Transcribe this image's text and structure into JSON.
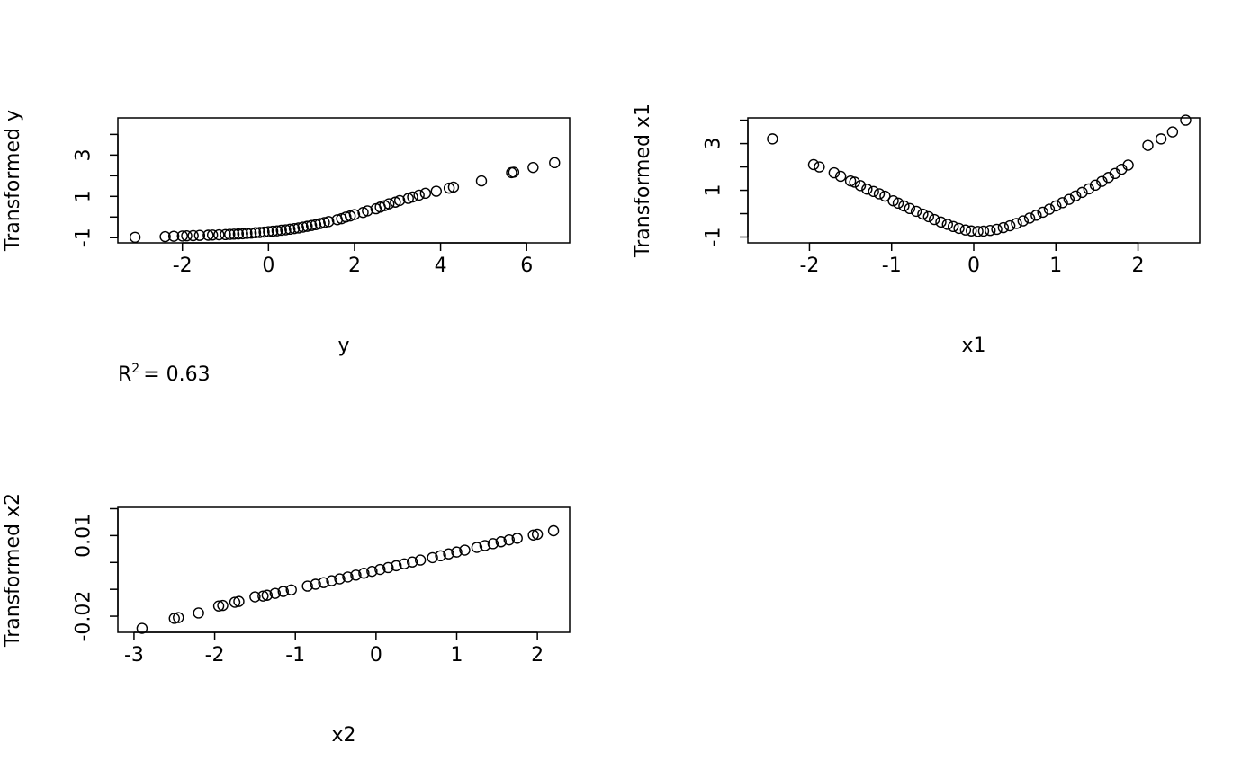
{
  "annotation": {
    "r2_prefix": "R",
    "r2_superscript": "2",
    "r2_value": "= 0.63"
  },
  "chart_data": [
    {
      "type": "scatter",
      "xlabel": "y",
      "ylabel": "Transformed y",
      "xlim": [
        -3.5,
        7.0
      ],
      "ylim": [
        -1.25,
        4.8
      ],
      "xticks": [
        -2,
        0,
        2,
        4,
        6
      ],
      "yticks": [
        -1,
        0,
        1,
        2,
        3,
        4
      ],
      "ytick_labels": [
        "-1",
        "",
        "1",
        "",
        "3",
        ""
      ],
      "points": [
        {
          "x": -3.1,
          "y": -0.98
        },
        {
          "x": -2.4,
          "y": -0.95
        },
        {
          "x": -2.2,
          "y": -0.93
        },
        {
          "x": -2.0,
          "y": -0.92
        },
        {
          "x": -1.9,
          "y": -0.91
        },
        {
          "x": -1.75,
          "y": -0.9
        },
        {
          "x": -1.6,
          "y": -0.89
        },
        {
          "x": -1.4,
          "y": -0.88
        },
        {
          "x": -1.3,
          "y": -0.87
        },
        {
          "x": -1.15,
          "y": -0.86
        },
        {
          "x": -1.0,
          "y": -0.85
        },
        {
          "x": -0.9,
          "y": -0.84
        },
        {
          "x": -0.8,
          "y": -0.83
        },
        {
          "x": -0.7,
          "y": -0.82
        },
        {
          "x": -0.6,
          "y": -0.81
        },
        {
          "x": -0.5,
          "y": -0.79
        },
        {
          "x": -0.4,
          "y": -0.78
        },
        {
          "x": -0.3,
          "y": -0.76
        },
        {
          "x": -0.2,
          "y": -0.75
        },
        {
          "x": -0.1,
          "y": -0.73
        },
        {
          "x": 0.0,
          "y": -0.71
        },
        {
          "x": 0.1,
          "y": -0.69
        },
        {
          "x": 0.2,
          "y": -0.67
        },
        {
          "x": 0.3,
          "y": -0.64
        },
        {
          "x": 0.4,
          "y": -0.62
        },
        {
          "x": 0.5,
          "y": -0.59
        },
        {
          "x": 0.6,
          "y": -0.56
        },
        {
          "x": 0.7,
          "y": -0.53
        },
        {
          "x": 0.8,
          "y": -0.49
        },
        {
          "x": 0.9,
          "y": -0.45
        },
        {
          "x": 1.0,
          "y": -0.41
        },
        {
          "x": 1.1,
          "y": -0.37
        },
        {
          "x": 1.2,
          "y": -0.32
        },
        {
          "x": 1.3,
          "y": -0.27
        },
        {
          "x": 1.4,
          "y": -0.22
        },
        {
          "x": 1.6,
          "y": -0.13
        },
        {
          "x": 1.7,
          "y": -0.08
        },
        {
          "x": 1.8,
          "y": 0.0
        },
        {
          "x": 1.9,
          "y": 0.05
        },
        {
          "x": 2.0,
          "y": 0.12
        },
        {
          "x": 2.2,
          "y": 0.22
        },
        {
          "x": 2.3,
          "y": 0.3
        },
        {
          "x": 2.5,
          "y": 0.4
        },
        {
          "x": 2.6,
          "y": 0.48
        },
        {
          "x": 2.7,
          "y": 0.55
        },
        {
          "x": 2.8,
          "y": 0.64
        },
        {
          "x": 2.95,
          "y": 0.72
        },
        {
          "x": 3.05,
          "y": 0.8
        },
        {
          "x": 3.25,
          "y": 0.9
        },
        {
          "x": 3.35,
          "y": 0.97
        },
        {
          "x": 3.5,
          "y": 1.06
        },
        {
          "x": 3.65,
          "y": 1.15
        },
        {
          "x": 3.9,
          "y": 1.25
        },
        {
          "x": 4.2,
          "y": 1.4
        },
        {
          "x": 4.3,
          "y": 1.45
        },
        {
          "x": 4.95,
          "y": 1.75
        },
        {
          "x": 5.65,
          "y": 2.15
        },
        {
          "x": 5.7,
          "y": 2.17
        },
        {
          "x": 6.15,
          "y": 2.4
        },
        {
          "x": 6.65,
          "y": 2.63
        }
      ]
    },
    {
      "type": "scatter",
      "xlabel": "x1",
      "ylabel": "Transformed x1",
      "xlim": [
        -2.75,
        2.75
      ],
      "ylim": [
        -1.25,
        4.1
      ],
      "xticks": [
        -2,
        -1,
        0,
        1,
        2
      ],
      "yticks": [
        -1,
        0,
        1,
        2,
        3,
        4
      ],
      "ytick_labels": [
        "-1",
        "",
        "1",
        "",
        "3",
        ""
      ],
      "points": [
        {
          "x": -2.45,
          "y": 3.2
        },
        {
          "x": -1.95,
          "y": 2.1
        },
        {
          "x": -1.88,
          "y": 2.0
        },
        {
          "x": -1.7,
          "y": 1.75
        },
        {
          "x": -1.62,
          "y": 1.6
        },
        {
          "x": -1.5,
          "y": 1.4
        },
        {
          "x": -1.45,
          "y": 1.35
        },
        {
          "x": -1.38,
          "y": 1.2
        },
        {
          "x": -1.3,
          "y": 1.05
        },
        {
          "x": -1.22,
          "y": 0.95
        },
        {
          "x": -1.15,
          "y": 0.85
        },
        {
          "x": -1.08,
          "y": 0.75
        },
        {
          "x": -0.98,
          "y": 0.55
        },
        {
          "x": -0.92,
          "y": 0.45
        },
        {
          "x": -0.85,
          "y": 0.33
        },
        {
          "x": -0.78,
          "y": 0.22
        },
        {
          "x": -0.7,
          "y": 0.1
        },
        {
          "x": -0.62,
          "y": -0.02
        },
        {
          "x": -0.55,
          "y": -0.13
        },
        {
          "x": -0.48,
          "y": -0.25
        },
        {
          "x": -0.4,
          "y": -0.36
        },
        {
          "x": -0.32,
          "y": -0.46
        },
        {
          "x": -0.25,
          "y": -0.55
        },
        {
          "x": -0.18,
          "y": -0.63
        },
        {
          "x": -0.1,
          "y": -0.7
        },
        {
          "x": -0.03,
          "y": -0.74
        },
        {
          "x": 0.05,
          "y": -0.76
        },
        {
          "x": 0.12,
          "y": -0.75
        },
        {
          "x": 0.2,
          "y": -0.72
        },
        {
          "x": 0.28,
          "y": -0.67
        },
        {
          "x": 0.36,
          "y": -0.6
        },
        {
          "x": 0.44,
          "y": -0.52
        },
        {
          "x": 0.52,
          "y": -0.42
        },
        {
          "x": 0.6,
          "y": -0.31
        },
        {
          "x": 0.68,
          "y": -0.19
        },
        {
          "x": 0.76,
          "y": -0.07
        },
        {
          "x": 0.84,
          "y": 0.06
        },
        {
          "x": 0.92,
          "y": 0.19
        },
        {
          "x": 1.0,
          "y": 0.33
        },
        {
          "x": 1.08,
          "y": 0.47
        },
        {
          "x": 1.16,
          "y": 0.61
        },
        {
          "x": 1.24,
          "y": 0.76
        },
        {
          "x": 1.32,
          "y": 0.91
        },
        {
          "x": 1.4,
          "y": 1.06
        },
        {
          "x": 1.48,
          "y": 1.22
        },
        {
          "x": 1.56,
          "y": 1.38
        },
        {
          "x": 1.64,
          "y": 1.55
        },
        {
          "x": 1.72,
          "y": 1.72
        },
        {
          "x": 1.8,
          "y": 1.9
        },
        {
          "x": 1.88,
          "y": 2.08
        },
        {
          "x": 2.12,
          "y": 2.92
        },
        {
          "x": 2.28,
          "y": 3.2
        },
        {
          "x": 2.42,
          "y": 3.5
        },
        {
          "x": 2.58,
          "y": 4.0
        }
      ]
    },
    {
      "type": "scatter",
      "xlabel": "x2",
      "ylabel": "Transformed x2",
      "xlim": [
        -3.2,
        2.4
      ],
      "ylim": [
        -0.026,
        0.0205
      ],
      "xticks": [
        -3,
        -2,
        -1,
        0,
        1,
        2
      ],
      "yticks": [
        -0.02,
        -0.01,
        0.0,
        0.01,
        0.02
      ],
      "ytick_labels": [
        "-0.02",
        "",
        "",
        "0.01",
        ""
      ],
      "points": [
        {
          "x": -2.9,
          "y": -0.0245
        },
        {
          "x": -2.5,
          "y": -0.0208
        },
        {
          "x": -2.45,
          "y": -0.0205
        },
        {
          "x": -2.2,
          "y": -0.0188
        },
        {
          "x": -1.95,
          "y": -0.0162
        },
        {
          "x": -1.9,
          "y": -0.016
        },
        {
          "x": -1.75,
          "y": -0.0148
        },
        {
          "x": -1.7,
          "y": -0.0145
        },
        {
          "x": -1.5,
          "y": -0.0128
        },
        {
          "x": -1.4,
          "y": -0.0125
        },
        {
          "x": -1.35,
          "y": -0.0122
        },
        {
          "x": -1.25,
          "y": -0.0115
        },
        {
          "x": -1.15,
          "y": -0.0108
        },
        {
          "x": -1.05,
          "y": -0.0102
        },
        {
          "x": -0.85,
          "y": -0.0088
        },
        {
          "x": -0.75,
          "y": -0.0081
        },
        {
          "x": -0.65,
          "y": -0.0075
        },
        {
          "x": -0.55,
          "y": -0.0068
        },
        {
          "x": -0.45,
          "y": -0.0061
        },
        {
          "x": -0.35,
          "y": -0.0054
        },
        {
          "x": -0.25,
          "y": -0.0047
        },
        {
          "x": -0.15,
          "y": -0.004
        },
        {
          "x": -0.05,
          "y": -0.0033
        },
        {
          "x": 0.05,
          "y": -0.0026
        },
        {
          "x": 0.15,
          "y": -0.0019
        },
        {
          "x": 0.25,
          "y": -0.0012
        },
        {
          "x": 0.35,
          "y": -0.0005
        },
        {
          "x": 0.45,
          "y": 0.0002
        },
        {
          "x": 0.55,
          "y": 0.0009
        },
        {
          "x": 0.7,
          "y": 0.0018
        },
        {
          "x": 0.8,
          "y": 0.0025
        },
        {
          "x": 0.9,
          "y": 0.0032
        },
        {
          "x": 1.0,
          "y": 0.0039
        },
        {
          "x": 1.1,
          "y": 0.0046
        },
        {
          "x": 1.25,
          "y": 0.0056
        },
        {
          "x": 1.35,
          "y": 0.0063
        },
        {
          "x": 1.45,
          "y": 0.007
        },
        {
          "x": 1.55,
          "y": 0.0077
        },
        {
          "x": 1.65,
          "y": 0.0084
        },
        {
          "x": 1.75,
          "y": 0.009
        },
        {
          "x": 1.95,
          "y": 0.0102
        },
        {
          "x": 2.0,
          "y": 0.0105
        },
        {
          "x": 2.2,
          "y": 0.0118
        }
      ]
    }
  ]
}
